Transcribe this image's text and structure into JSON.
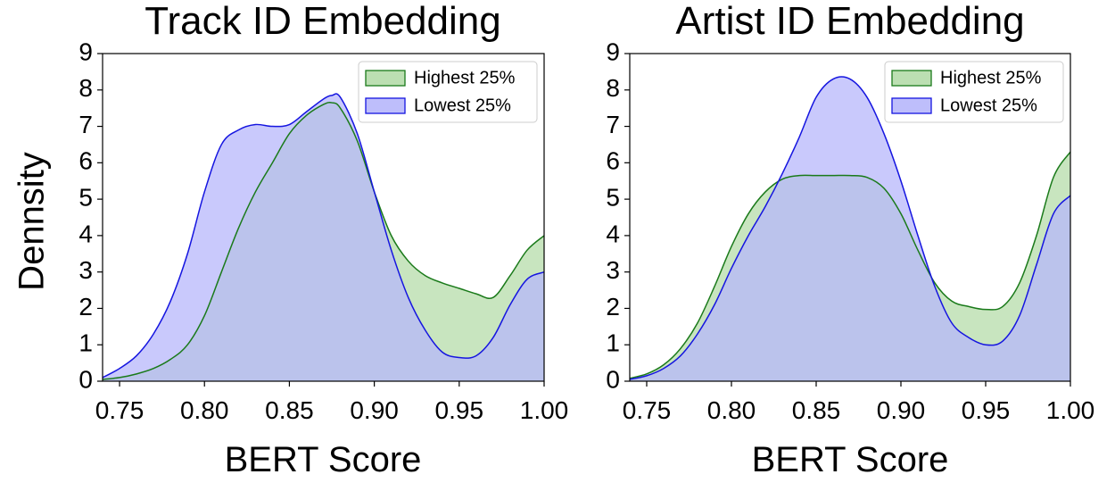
{
  "figure": {
    "shared_ylabel": "Dennsity"
  },
  "chart_data": [
    {
      "type": "area",
      "title": "Track ID Embedding",
      "xlabel": "BERT Score",
      "ylabel": "Dennsity",
      "xlim": [
        0.74,
        1.0
      ],
      "ylim": [
        0,
        9
      ],
      "xticks": [
        "0.75",
        "0.80",
        "0.85",
        "0.90",
        "0.95",
        "1.00"
      ],
      "xtick_values": [
        0.75,
        0.8,
        0.85,
        0.9,
        0.95,
        1.0
      ],
      "yticks": [
        "0",
        "1",
        "2",
        "3",
        "4",
        "5",
        "6",
        "7",
        "8",
        "9"
      ],
      "yticks_values": [
        0,
        1,
        2,
        3,
        4,
        5,
        6,
        7,
        8,
        9
      ],
      "grid": false,
      "legend_position": "top-right",
      "x": [
        0.74,
        0.75,
        0.76,
        0.77,
        0.78,
        0.79,
        0.8,
        0.81,
        0.82,
        0.83,
        0.84,
        0.85,
        0.86,
        0.87,
        0.875,
        0.88,
        0.89,
        0.9,
        0.91,
        0.92,
        0.93,
        0.94,
        0.95,
        0.96,
        0.97,
        0.98,
        0.99,
        1.0
      ],
      "series": [
        {
          "name": "Highest 25%",
          "fill": "#b5dcaa",
          "stroke": "#1a7a1a",
          "values": [
            0.05,
            0.1,
            0.2,
            0.35,
            0.6,
            1.0,
            1.8,
            3.0,
            4.2,
            5.2,
            6.0,
            6.8,
            7.3,
            7.6,
            7.65,
            7.5,
            6.6,
            5.2,
            4.0,
            3.3,
            2.9,
            2.7,
            2.55,
            2.4,
            2.3,
            2.9,
            3.6,
            4.0
          ]
        },
        {
          "name": "Lowest 25%",
          "fill": "#b7b7fb",
          "stroke": "#1515e0",
          "values": [
            0.1,
            0.35,
            0.7,
            1.3,
            2.2,
            3.5,
            5.2,
            6.5,
            6.9,
            7.05,
            7.0,
            7.05,
            7.4,
            7.75,
            7.85,
            7.8,
            6.8,
            5.2,
            3.6,
            2.3,
            1.4,
            0.8,
            0.65,
            0.7,
            1.2,
            2.1,
            2.8,
            3.0
          ]
        }
      ]
    },
    {
      "type": "area",
      "title": "Artist ID Embedding",
      "xlabel": "BERT Score",
      "ylabel": "",
      "xlim": [
        0.74,
        1.0
      ],
      "ylim": [
        0,
        9
      ],
      "xticks": [
        "0.75",
        "0.80",
        "0.85",
        "0.90",
        "0.95",
        "1.00"
      ],
      "xtick_values": [
        0.75,
        0.8,
        0.85,
        0.9,
        0.95,
        1.0
      ],
      "yticks": [
        "0",
        "1",
        "2",
        "3",
        "4",
        "5",
        "6",
        "7",
        "8",
        "9"
      ],
      "yticks_values": [
        0,
        1,
        2,
        3,
        4,
        5,
        6,
        7,
        8,
        9
      ],
      "grid": false,
      "legend_position": "top-right",
      "x": [
        0.74,
        0.75,
        0.76,
        0.77,
        0.78,
        0.79,
        0.8,
        0.81,
        0.82,
        0.83,
        0.84,
        0.85,
        0.86,
        0.87,
        0.88,
        0.89,
        0.9,
        0.91,
        0.92,
        0.93,
        0.94,
        0.95,
        0.96,
        0.97,
        0.98,
        0.99,
        1.0
      ],
      "series": [
        {
          "name": "Highest 25%",
          "fill": "#b5dcaa",
          "stroke": "#1a7a1a",
          "values": [
            0.08,
            0.2,
            0.45,
            0.9,
            1.6,
            2.6,
            3.7,
            4.6,
            5.2,
            5.55,
            5.65,
            5.65,
            5.65,
            5.65,
            5.6,
            5.3,
            4.6,
            3.6,
            2.7,
            2.2,
            2.05,
            1.97,
            2.05,
            2.7,
            4.0,
            5.6,
            6.3
          ]
        },
        {
          "name": "Lowest 25%",
          "fill": "#b7b7fb",
          "stroke": "#1515e0",
          "values": [
            0.05,
            0.15,
            0.35,
            0.7,
            1.3,
            2.1,
            3.1,
            4.0,
            4.8,
            5.7,
            6.7,
            7.8,
            8.3,
            8.3,
            7.8,
            6.8,
            5.5,
            4.0,
            2.6,
            1.6,
            1.2,
            1.0,
            1.1,
            1.8,
            3.2,
            4.6,
            5.1
          ]
        }
      ]
    }
  ]
}
